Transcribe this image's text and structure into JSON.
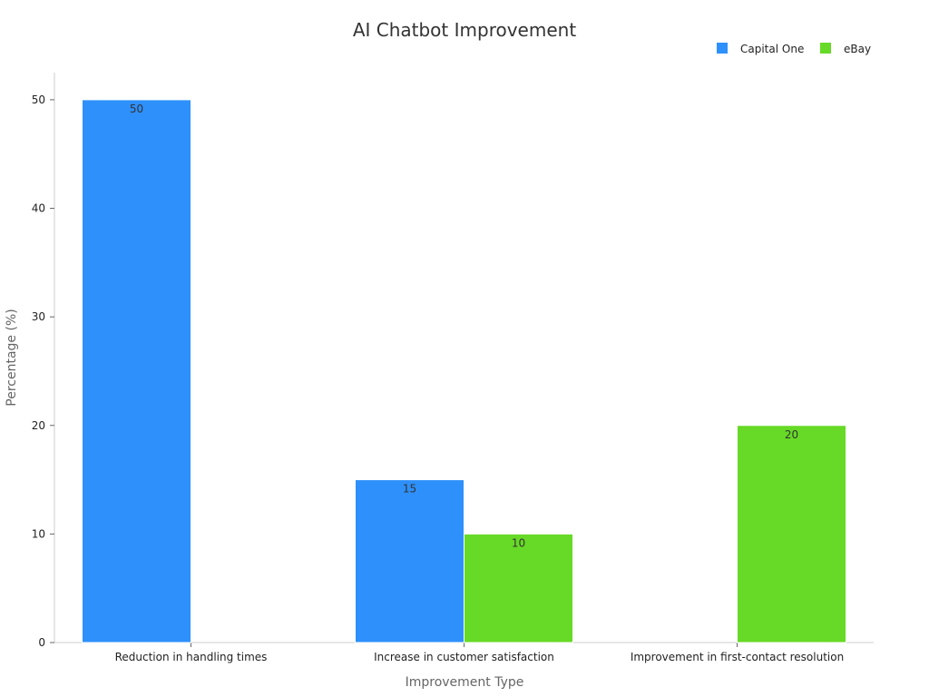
{
  "chart_data": {
    "type": "bar",
    "title": "AI Chatbot Improvement",
    "xlabel": "Improvement Type",
    "ylabel": "Percentage (%)",
    "categories": [
      "Reduction in handling times",
      "Increase in customer satisfaction",
      "Improvement in first-contact resolution"
    ],
    "series": [
      {
        "name": "Capital One",
        "color": "#2e90fa",
        "values": [
          50,
          15,
          null
        ]
      },
      {
        "name": "eBay",
        "color": "#66da26",
        "values": [
          null,
          10,
          20
        ]
      }
    ],
    "ylim": [
      0,
      52.5
    ],
    "yticks": [
      0,
      10,
      20,
      30,
      40,
      50
    ],
    "grid": false,
    "legend_position": "top-right"
  }
}
